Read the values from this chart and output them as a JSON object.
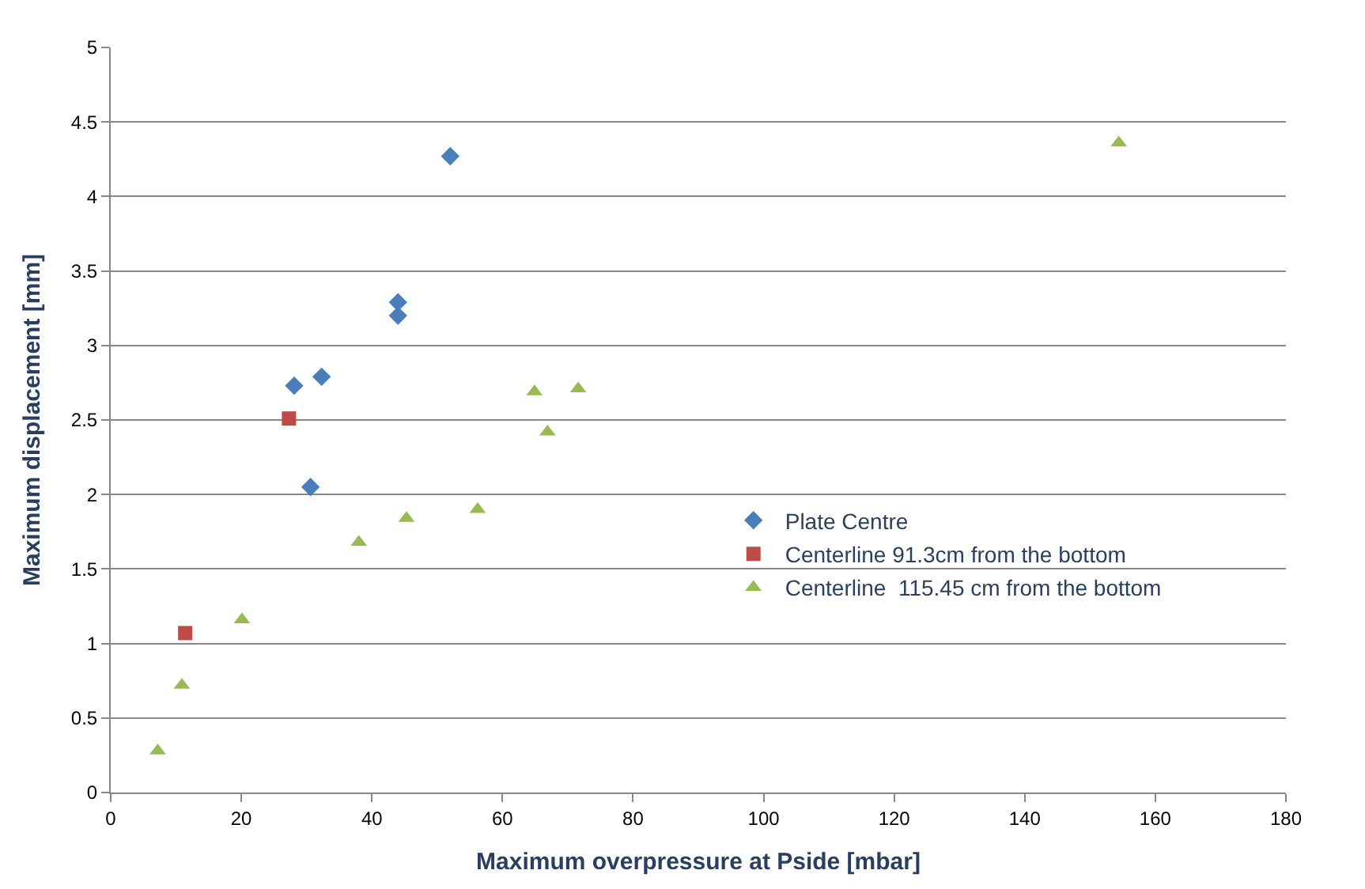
{
  "chart_data": {
    "type": "scatter",
    "xlabel": "Maximum overpressure at Pside [mbar]",
    "ylabel": "Maximum displacement [mm]",
    "xlim": [
      0,
      180
    ],
    "xticks": [
      0,
      20,
      40,
      60,
      80,
      100,
      120,
      140,
      160,
      180
    ],
    "ylim": [
      0,
      5
    ],
    "yticks": [
      0,
      0.5,
      1,
      1.5,
      2,
      2.5,
      3,
      3.5,
      4,
      4.5,
      5
    ],
    "grid": "y",
    "legend": "right",
    "series": [
      {
        "name": "Plate Centre",
        "color": "#4a7ebb",
        "marker": "diamond",
        "x": [
          52.0,
          44.0,
          44.0,
          28.1,
          32.3,
          30.6
        ],
        "values": [
          4.27,
          3.29,
          3.2,
          2.73,
          2.79,
          2.05
        ]
      },
      {
        "name": "Centerline 91.3cm from the bottom",
        "color": "#be4b48",
        "marker": "square",
        "x": [
          27.3,
          11.4
        ],
        "values": [
          2.51,
          1.07
        ]
      },
      {
        "name": "Centerline  115.45 cm from the bottom",
        "color": "#98b954",
        "marker": "triangle",
        "x": [
          154.4,
          64.9,
          71.6,
          66.9,
          56.2,
          45.3,
          38.0,
          20.1,
          10.9,
          7.2
        ],
        "values": [
          4.36,
          2.69,
          2.71,
          2.42,
          1.9,
          1.84,
          1.68,
          1.16,
          0.72,
          0.28
        ]
      }
    ]
  }
}
